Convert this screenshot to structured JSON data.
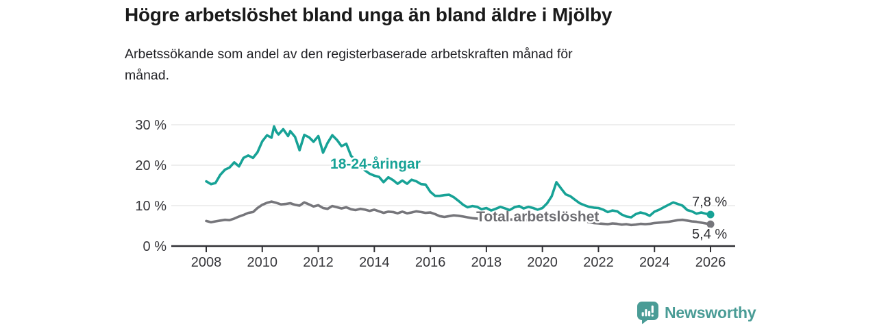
{
  "chart_data": {
    "type": "line",
    "title": "Högre arbetslöshet bland unga än bland äldre i Mjölby",
    "subtitle": "Arbetssökande som andel av den registerbaserade arbetskraften månad för månad.",
    "legend": "inline-labels-on-chart",
    "grid": "horizontal-only",
    "x_axis": {
      "range": [
        2006.9,
        2026.9
      ],
      "ticks": [
        2008,
        2010,
        2012,
        2014,
        2016,
        2018,
        2020,
        2022,
        2024,
        2026
      ]
    },
    "y_axis": {
      "unit": "%",
      "range": [
        0,
        31
      ],
      "ticks": [
        {
          "value": 0,
          "label": "0 %"
        },
        {
          "value": 10,
          "label": "10 %"
        },
        {
          "value": 20,
          "label": "20 %"
        },
        {
          "value": 30,
          "label": "30 %"
        }
      ]
    },
    "style": {
      "grid_color": "#dcdcdc",
      "axis_color": "#303034",
      "tick_label_color": "#36363a",
      "end_label_color": "#2e2e32"
    },
    "series": [
      {
        "id": "total",
        "name": "Total arbetslöshet",
        "color": "#76767b",
        "label_color": "#6d6d72",
        "end_label": "5,4 %",
        "end_label_offset": [
          -27,
          21
        ],
        "label_anchor": {
          "year": 2019.83,
          "value": 7.3
        },
        "points": [
          [
            2008.0,
            6.2
          ],
          [
            2008.17,
            5.9
          ],
          [
            2008.33,
            6.1
          ],
          [
            2008.5,
            6.3
          ],
          [
            2008.67,
            6.5
          ],
          [
            2008.83,
            6.4
          ],
          [
            2009.0,
            6.8
          ],
          [
            2009.17,
            7.3
          ],
          [
            2009.33,
            7.7
          ],
          [
            2009.5,
            8.2
          ],
          [
            2009.67,
            8.4
          ],
          [
            2009.83,
            9.4
          ],
          [
            2010.0,
            10.2
          ],
          [
            2010.17,
            10.7
          ],
          [
            2010.33,
            11.0
          ],
          [
            2010.5,
            10.7
          ],
          [
            2010.67,
            10.3
          ],
          [
            2010.83,
            10.4
          ],
          [
            2011.0,
            10.6
          ],
          [
            2011.17,
            10.2
          ],
          [
            2011.33,
            10.0
          ],
          [
            2011.5,
            10.8
          ],
          [
            2011.67,
            10.3
          ],
          [
            2011.83,
            9.8
          ],
          [
            2012.0,
            10.1
          ],
          [
            2012.17,
            9.4
          ],
          [
            2012.33,
            9.2
          ],
          [
            2012.5,
            9.9
          ],
          [
            2012.67,
            9.6
          ],
          [
            2012.83,
            9.3
          ],
          [
            2013.0,
            9.6
          ],
          [
            2013.17,
            9.1
          ],
          [
            2013.33,
            8.9
          ],
          [
            2013.5,
            9.2
          ],
          [
            2013.67,
            9.0
          ],
          [
            2013.83,
            8.7
          ],
          [
            2014.0,
            9.0
          ],
          [
            2014.17,
            8.6
          ],
          [
            2014.33,
            8.2
          ],
          [
            2014.5,
            8.5
          ],
          [
            2014.67,
            8.4
          ],
          [
            2014.83,
            8.1
          ],
          [
            2015.0,
            8.5
          ],
          [
            2015.17,
            8.1
          ],
          [
            2015.33,
            8.3
          ],
          [
            2015.5,
            8.6
          ],
          [
            2015.67,
            8.4
          ],
          [
            2015.83,
            8.2
          ],
          [
            2016.0,
            8.3
          ],
          [
            2016.17,
            7.9
          ],
          [
            2016.33,
            7.4
          ],
          [
            2016.5,
            7.2
          ],
          [
            2016.67,
            7.4
          ],
          [
            2016.83,
            7.6
          ],
          [
            2017.0,
            7.5
          ],
          [
            2017.17,
            7.3
          ],
          [
            2017.33,
            7.1
          ],
          [
            2017.5,
            6.9
          ],
          [
            2017.67,
            6.8
          ],
          [
            2017.83,
            6.7
          ],
          [
            2018.0,
            6.8
          ],
          [
            2018.33,
            6.6
          ],
          [
            2018.67,
            6.5
          ],
          [
            2019.0,
            6.6
          ],
          [
            2019.33,
            6.4
          ],
          [
            2019.67,
            6.3
          ],
          [
            2020.0,
            6.6
          ],
          [
            2020.33,
            7.3
          ],
          [
            2020.5,
            7.7
          ],
          [
            2020.67,
            7.5
          ],
          [
            2021.0,
            7.0
          ],
          [
            2021.33,
            6.4
          ],
          [
            2021.67,
            5.9
          ],
          [
            2021.83,
            5.7
          ],
          [
            2022.0,
            5.6
          ],
          [
            2022.17,
            5.5
          ],
          [
            2022.33,
            5.4
          ],
          [
            2022.5,
            5.6
          ],
          [
            2022.67,
            5.5
          ],
          [
            2022.83,
            5.3
          ],
          [
            2023.0,
            5.4
          ],
          [
            2023.17,
            5.2
          ],
          [
            2023.33,
            5.3
          ],
          [
            2023.5,
            5.5
          ],
          [
            2023.67,
            5.4
          ],
          [
            2023.83,
            5.5
          ],
          [
            2024.0,
            5.7
          ],
          [
            2024.17,
            5.8
          ],
          [
            2024.33,
            5.9
          ],
          [
            2024.5,
            6.0
          ],
          [
            2024.67,
            6.2
          ],
          [
            2024.83,
            6.4
          ],
          [
            2025.0,
            6.5
          ],
          [
            2025.17,
            6.3
          ],
          [
            2025.33,
            6.1
          ],
          [
            2025.5,
            6.0
          ],
          [
            2025.67,
            5.8
          ],
          [
            2025.83,
            5.6
          ],
          [
            2026.0,
            5.4
          ]
        ]
      },
      {
        "id": "young",
        "name": "18-24-åringar",
        "color": "#17a296",
        "label_color": "#17a296",
        "end_label": "7,8 %",
        "end_label_offset": [
          -27,
          -12
        ],
        "label_anchor": {
          "year": 2014.04,
          "value": 20.3
        },
        "points": [
          [
            2008.0,
            16.0
          ],
          [
            2008.17,
            15.3
          ],
          [
            2008.33,
            15.6
          ],
          [
            2008.5,
            17.6
          ],
          [
            2008.67,
            18.9
          ],
          [
            2008.83,
            19.4
          ],
          [
            2009.0,
            20.7
          ],
          [
            2009.17,
            19.7
          ],
          [
            2009.33,
            21.8
          ],
          [
            2009.5,
            22.4
          ],
          [
            2009.67,
            21.8
          ],
          [
            2009.83,
            23.2
          ],
          [
            2010.0,
            25.9
          ],
          [
            2010.17,
            27.4
          ],
          [
            2010.33,
            26.8
          ],
          [
            2010.42,
            29.6
          ],
          [
            2010.5,
            28.3
          ],
          [
            2010.58,
            27.6
          ],
          [
            2010.75,
            28.9
          ],
          [
            2010.92,
            27.2
          ],
          [
            2011.0,
            28.4
          ],
          [
            2011.17,
            27.0
          ],
          [
            2011.33,
            23.7
          ],
          [
            2011.5,
            27.5
          ],
          [
            2011.67,
            26.9
          ],
          [
            2011.83,
            25.8
          ],
          [
            2012.0,
            27.2
          ],
          [
            2012.17,
            23.1
          ],
          [
            2012.33,
            25.5
          ],
          [
            2012.5,
            27.4
          ],
          [
            2012.67,
            26.2
          ],
          [
            2012.83,
            24.7
          ],
          [
            2013.0,
            25.3
          ],
          [
            2013.17,
            22.3
          ],
          [
            2013.33,
            21.2
          ],
          [
            2013.5,
            19.8
          ],
          [
            2013.67,
            18.7
          ],
          [
            2013.83,
            17.9
          ],
          [
            2014.0,
            17.4
          ],
          [
            2014.17,
            17.1
          ],
          [
            2014.33,
            15.8
          ],
          [
            2014.5,
            17.0
          ],
          [
            2014.67,
            16.3
          ],
          [
            2014.83,
            15.4
          ],
          [
            2015.0,
            16.2
          ],
          [
            2015.17,
            15.4
          ],
          [
            2015.33,
            16.4
          ],
          [
            2015.5,
            16.0
          ],
          [
            2015.67,
            15.3
          ],
          [
            2015.83,
            15.2
          ],
          [
            2016.0,
            13.4
          ],
          [
            2016.17,
            12.4
          ],
          [
            2016.33,
            12.4
          ],
          [
            2016.5,
            12.6
          ],
          [
            2016.67,
            12.7
          ],
          [
            2016.83,
            12.1
          ],
          [
            2017.0,
            11.2
          ],
          [
            2017.17,
            10.2
          ],
          [
            2017.33,
            9.6
          ],
          [
            2017.5,
            9.9
          ],
          [
            2017.67,
            9.7
          ],
          [
            2017.83,
            9.1
          ],
          [
            2018.0,
            9.4
          ],
          [
            2018.17,
            8.8
          ],
          [
            2018.33,
            9.2
          ],
          [
            2018.5,
            9.7
          ],
          [
            2018.67,
            9.3
          ],
          [
            2018.83,
            8.9
          ],
          [
            2019.0,
            9.6
          ],
          [
            2019.17,
            9.9
          ],
          [
            2019.33,
            9.3
          ],
          [
            2019.5,
            9.7
          ],
          [
            2019.67,
            9.4
          ],
          [
            2019.83,
            9.0
          ],
          [
            2020.0,
            9.4
          ],
          [
            2020.17,
            10.6
          ],
          [
            2020.33,
            12.3
          ],
          [
            2020.5,
            15.8
          ],
          [
            2020.67,
            14.2
          ],
          [
            2020.83,
            12.8
          ],
          [
            2021.0,
            12.3
          ],
          [
            2021.17,
            11.4
          ],
          [
            2021.33,
            10.6
          ],
          [
            2021.5,
            10.1
          ],
          [
            2021.67,
            9.7
          ],
          [
            2021.83,
            9.5
          ],
          [
            2022.0,
            9.4
          ],
          [
            2022.17,
            9.0
          ],
          [
            2022.33,
            8.4
          ],
          [
            2022.5,
            8.8
          ],
          [
            2022.67,
            8.6
          ],
          [
            2022.83,
            7.8
          ],
          [
            2023.0,
            7.3
          ],
          [
            2023.17,
            7.1
          ],
          [
            2023.33,
            7.9
          ],
          [
            2023.5,
            8.3
          ],
          [
            2023.67,
            8.0
          ],
          [
            2023.83,
            7.5
          ],
          [
            2024.0,
            8.5
          ],
          [
            2024.17,
            9.0
          ],
          [
            2024.33,
            9.6
          ],
          [
            2024.5,
            10.2
          ],
          [
            2024.67,
            10.8
          ],
          [
            2024.83,
            10.4
          ],
          [
            2025.0,
            10.0
          ],
          [
            2025.17,
            8.9
          ],
          [
            2025.33,
            8.6
          ],
          [
            2025.5,
            8.0
          ],
          [
            2025.67,
            8.3
          ],
          [
            2025.83,
            8.0
          ],
          [
            2026.0,
            7.8
          ]
        ]
      }
    ]
  },
  "branding": {
    "logo_text": "Newsworthy",
    "logo_color": "#4a9c96",
    "logo_icon": "bar-chart-speech-bubble-icon"
  }
}
